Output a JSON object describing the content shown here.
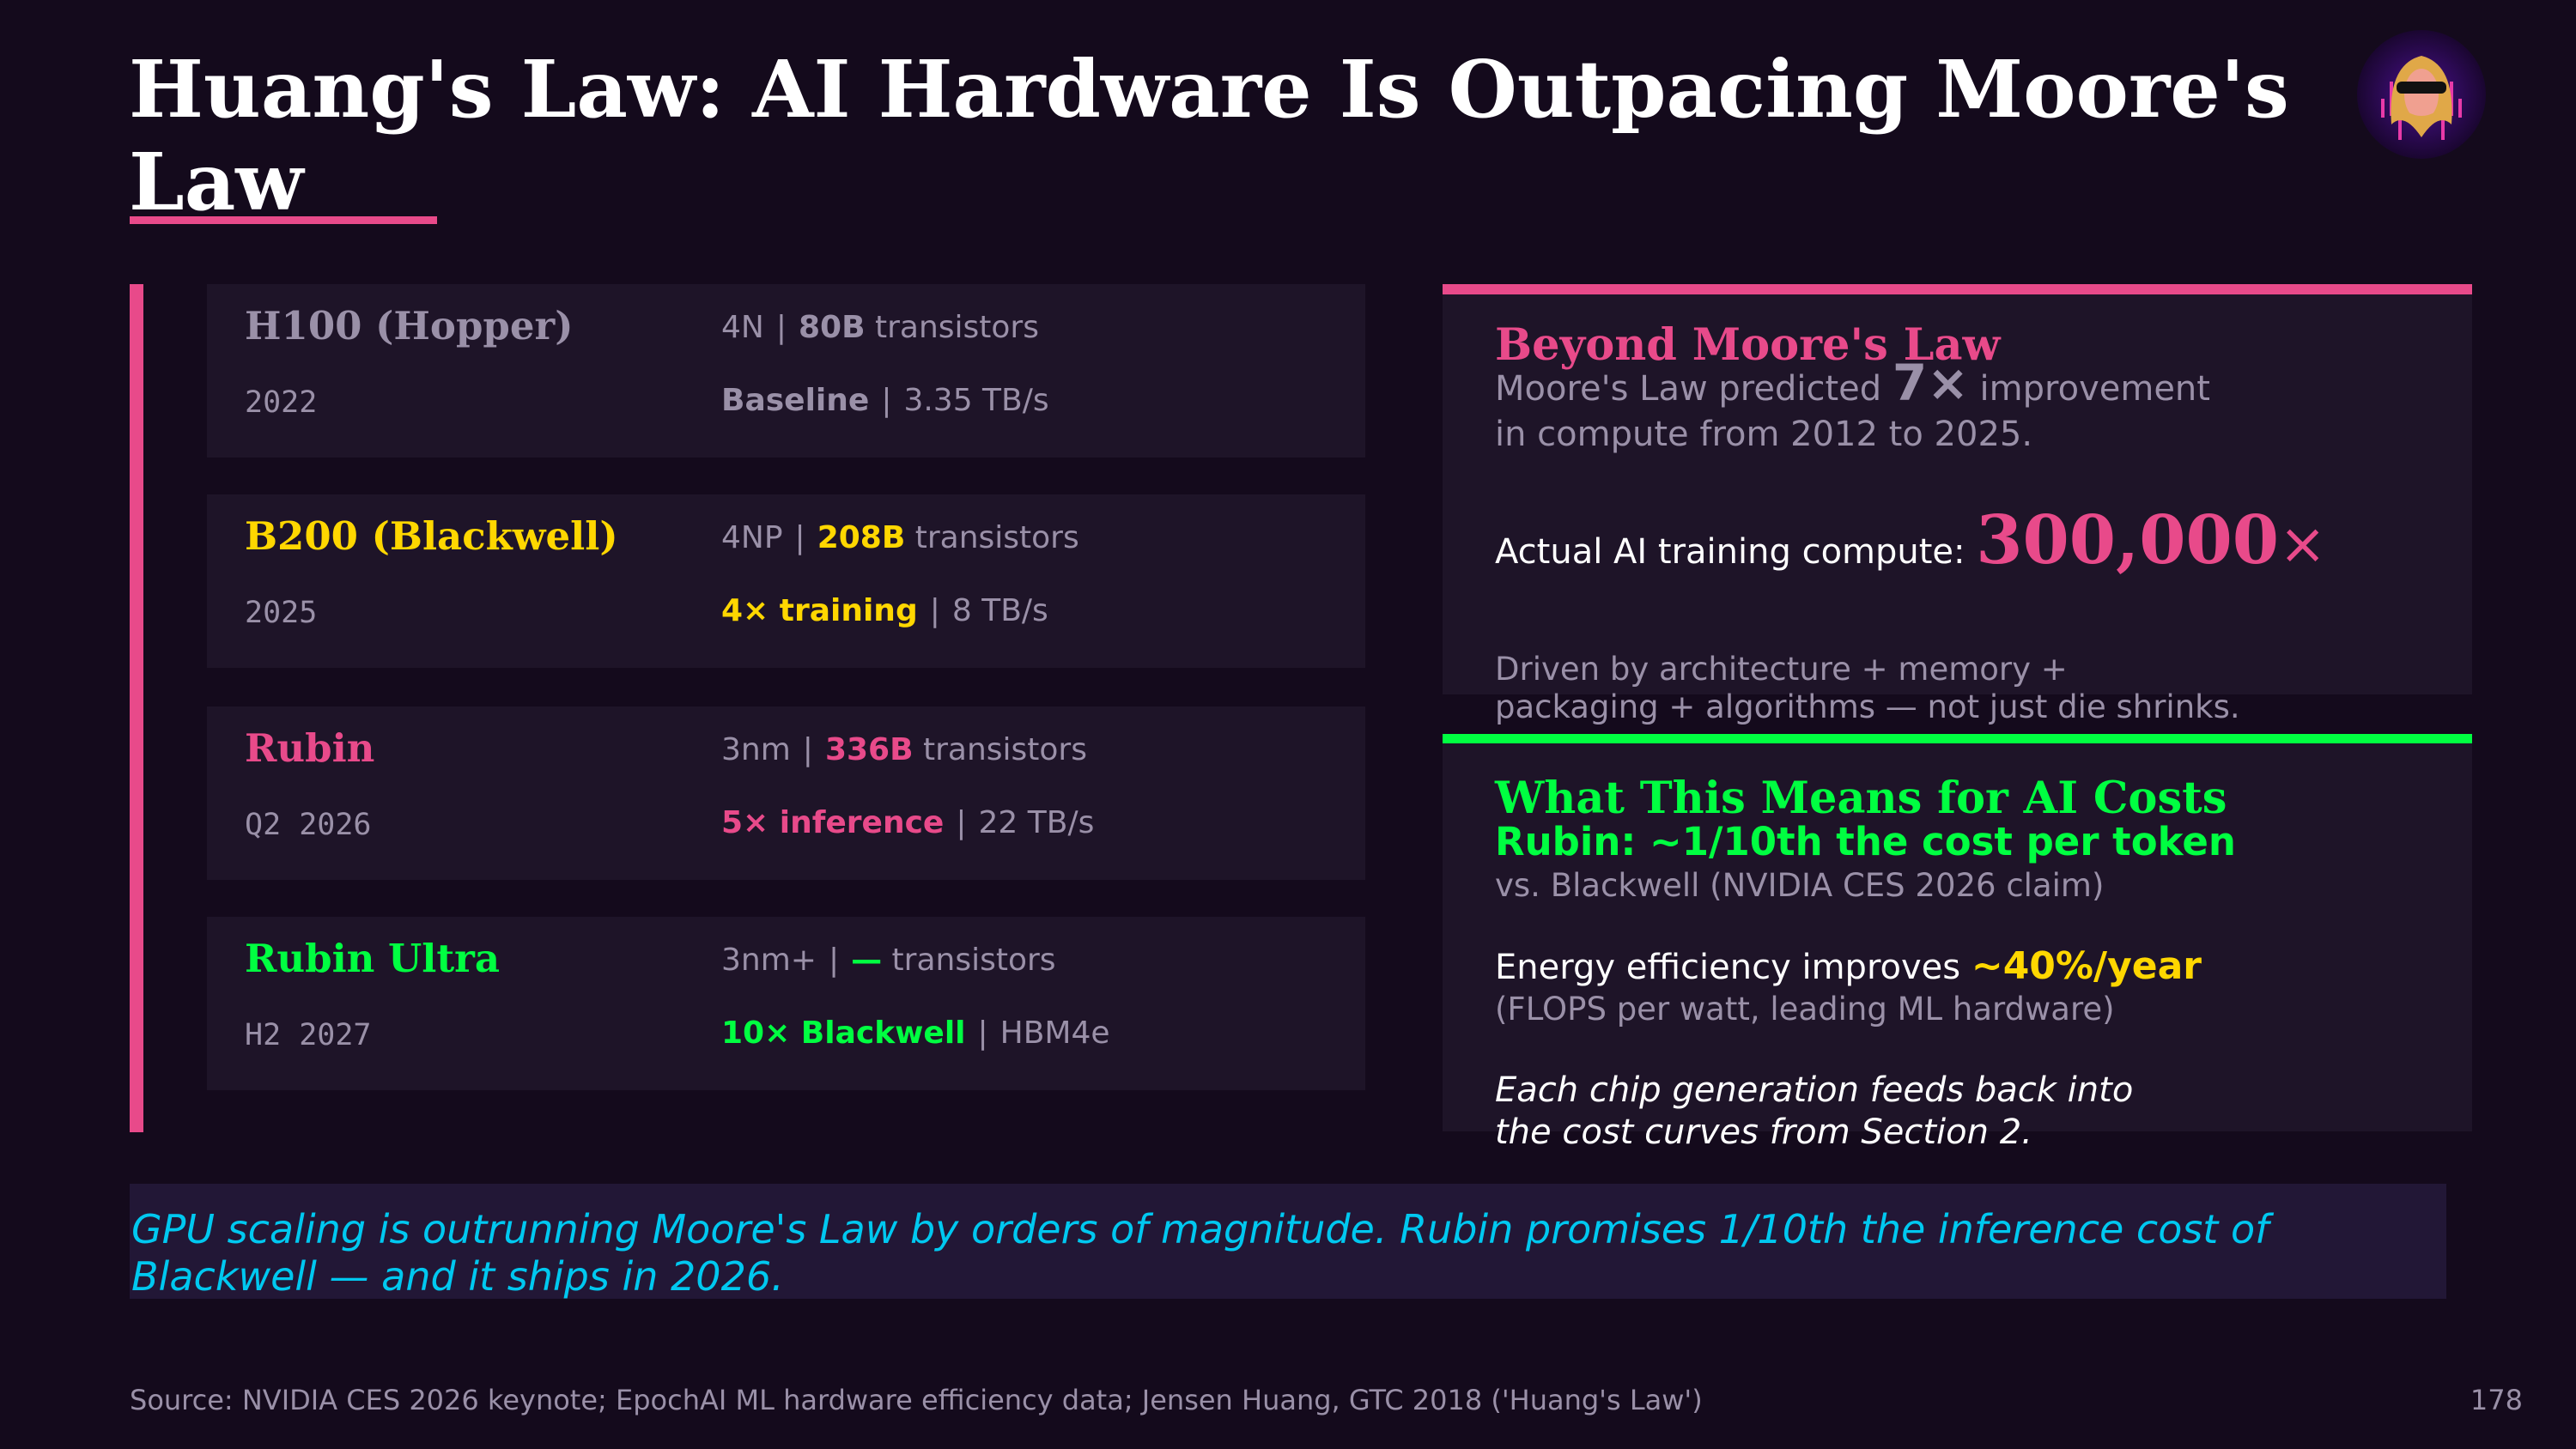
{
  "title": "Huang's Law: AI Hardware Is Outpacing Moore's Law",
  "colors": {
    "background": "#140a1c",
    "card": "#1e1428",
    "pink": "#e84a8a",
    "yellow": "#ffd700",
    "green": "#00ff41",
    "muted": "#9a90a8",
    "cyan": "#00c8f0"
  },
  "avatar": {
    "icon": "avatar-sunglasses-bearded-man"
  },
  "chips": [
    {
      "name": "H100 (Hopper)",
      "year": "2022",
      "process": "4N",
      "transistors": "80B",
      "transistors_suffix": "transistors",
      "perf": "Baseline",
      "bandwidth": "3.35 TB/s",
      "color": "#9a90a8"
    },
    {
      "name": "B200 (Blackwell)",
      "year": "2025",
      "process": "4NP",
      "transistors": "208B",
      "transistors_suffix": "transistors",
      "perf": "4× training",
      "bandwidth": "8 TB/s",
      "color": "#ffd700"
    },
    {
      "name": "Rubin",
      "year": "Q2 2026",
      "process": "3nm",
      "transistors": "336B",
      "transistors_suffix": "transistors",
      "perf": "5× inference",
      "bandwidth": "22 TB/s",
      "color": "#e84a8a"
    },
    {
      "name": "Rubin Ultra",
      "year": "H2 2027",
      "process": "3nm+",
      "transistors": "—",
      "transistors_suffix": "transistors",
      "perf": "10× Blackwell",
      "bandwidth": "HBM4e",
      "color": "#00ff41"
    }
  ],
  "separator": "|",
  "beyond": {
    "heading": "Beyond Moore's Law",
    "line1_pre": "Moore's Law predicted ",
    "line1_big": "7×",
    "line1_post": " improvement",
    "line2": "in compute from 2012 to 2025.",
    "actual_label": "Actual AI training compute: ",
    "actual_value": "300,000",
    "actual_suffix": "×",
    "driven1": "Driven by architecture + memory +",
    "driven2": "packaging + algorithms — not just die shrinks."
  },
  "costs": {
    "heading": "What This Means for AI Costs",
    "rubin": "Rubin:  ~1/10th the cost per token",
    "rubin_sub": "vs. Blackwell (NVIDIA CES 2026 claim)",
    "energy_pre": "Energy efficiency improves ",
    "energy_value": "~40%/year",
    "energy_sub": "(FLOPS per watt, leading ML hardware)",
    "note1": "Each chip generation feeds back into",
    "note2": "the cost curves from Section 2."
  },
  "callout": {
    "line1": "GPU scaling is outrunning Moore's Law by orders of magnitude. Rubin promises 1/10th the inference cost of",
    "line2": "Blackwell — and it ships in 2026."
  },
  "footer": {
    "source": "Source: NVIDIA CES 2026 keynote; EpochAI ML hardware efficiency data; Jensen Huang, GTC 2018 ('Huang's Law')",
    "page": "178"
  }
}
